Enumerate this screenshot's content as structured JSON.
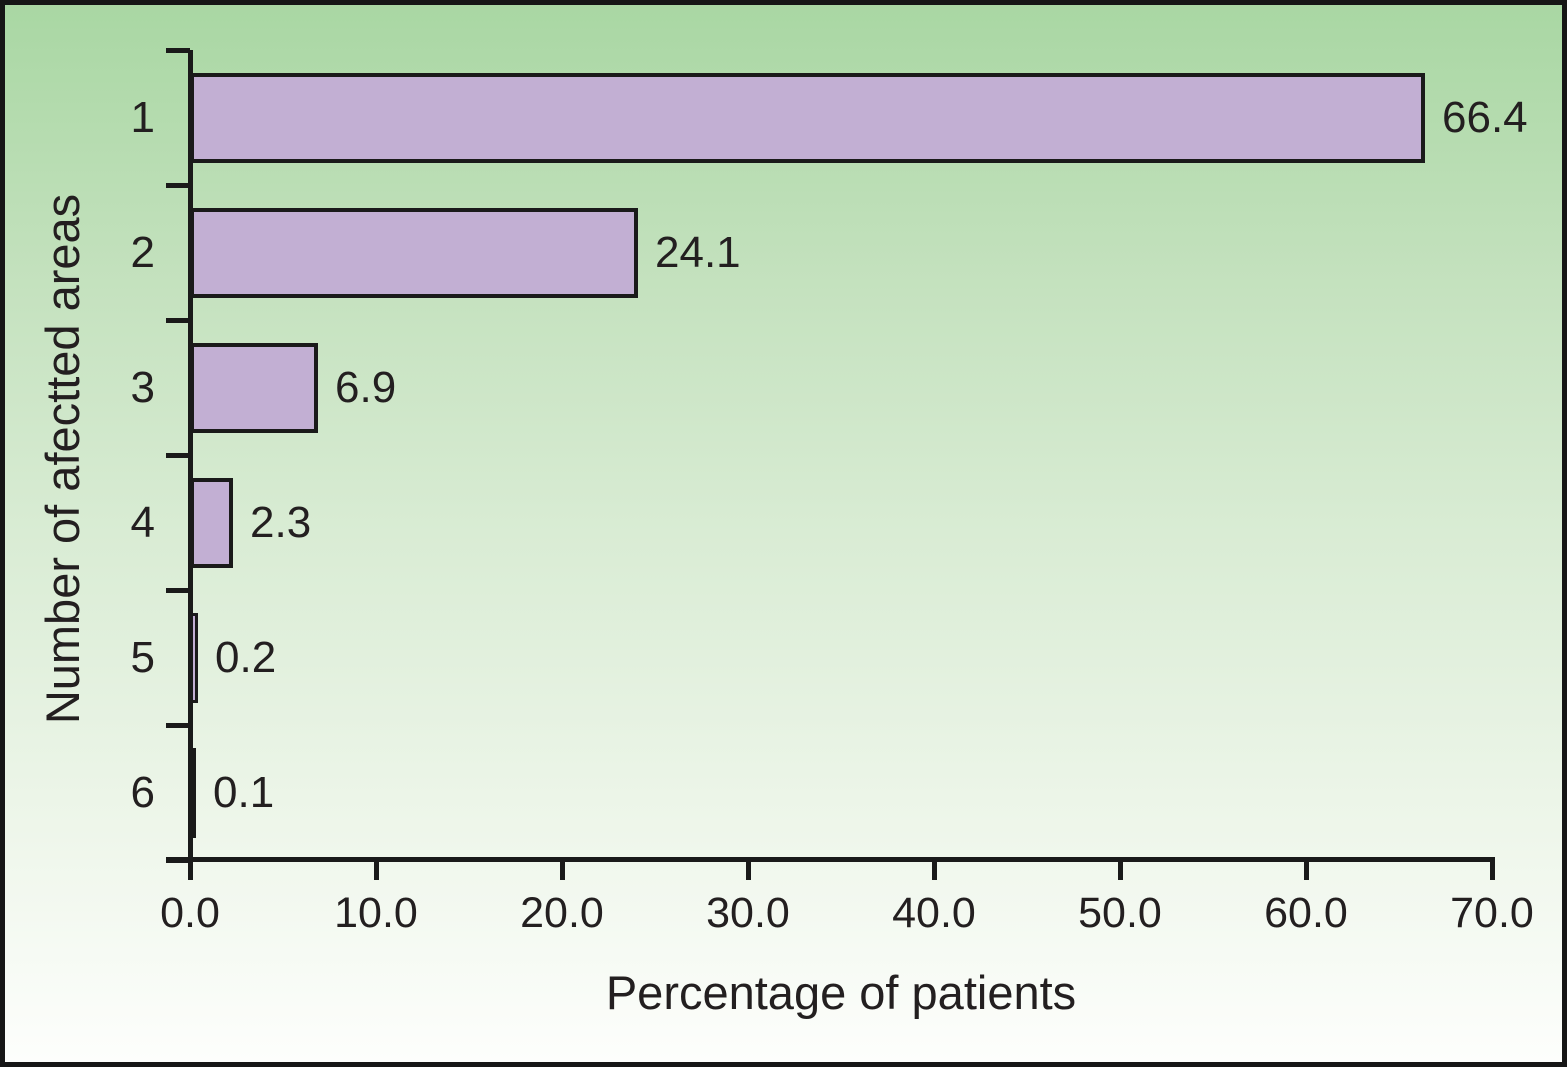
{
  "chart_data": {
    "type": "bar",
    "orientation": "horizontal",
    "title": "",
    "xlabel": "Percentage of patients",
    "ylabel": "Number of afectted areas",
    "categories": [
      "1",
      "2",
      "3",
      "4",
      "5",
      "6"
    ],
    "values": [
      66.4,
      24.1,
      6.9,
      2.3,
      0.2,
      0.1
    ],
    "value_labels": [
      "66.4",
      "24.1",
      "6.9",
      "2.3",
      "0.2",
      "0.1"
    ],
    "x_ticks": [
      "0.0",
      "10.0",
      "20.0",
      "30.0",
      "40.0",
      "50.0",
      "60.0",
      "70.0"
    ],
    "xlim": [
      0,
      70
    ],
    "grid": false,
    "legend": false,
    "colors": {
      "bar_fill": "#c2afd3",
      "bar_border": "#1a1a1a",
      "axis": "#1a1a1a",
      "text": "#231f20",
      "background_top": "#a9d7a3",
      "background_bottom": "#fdfefc"
    }
  }
}
